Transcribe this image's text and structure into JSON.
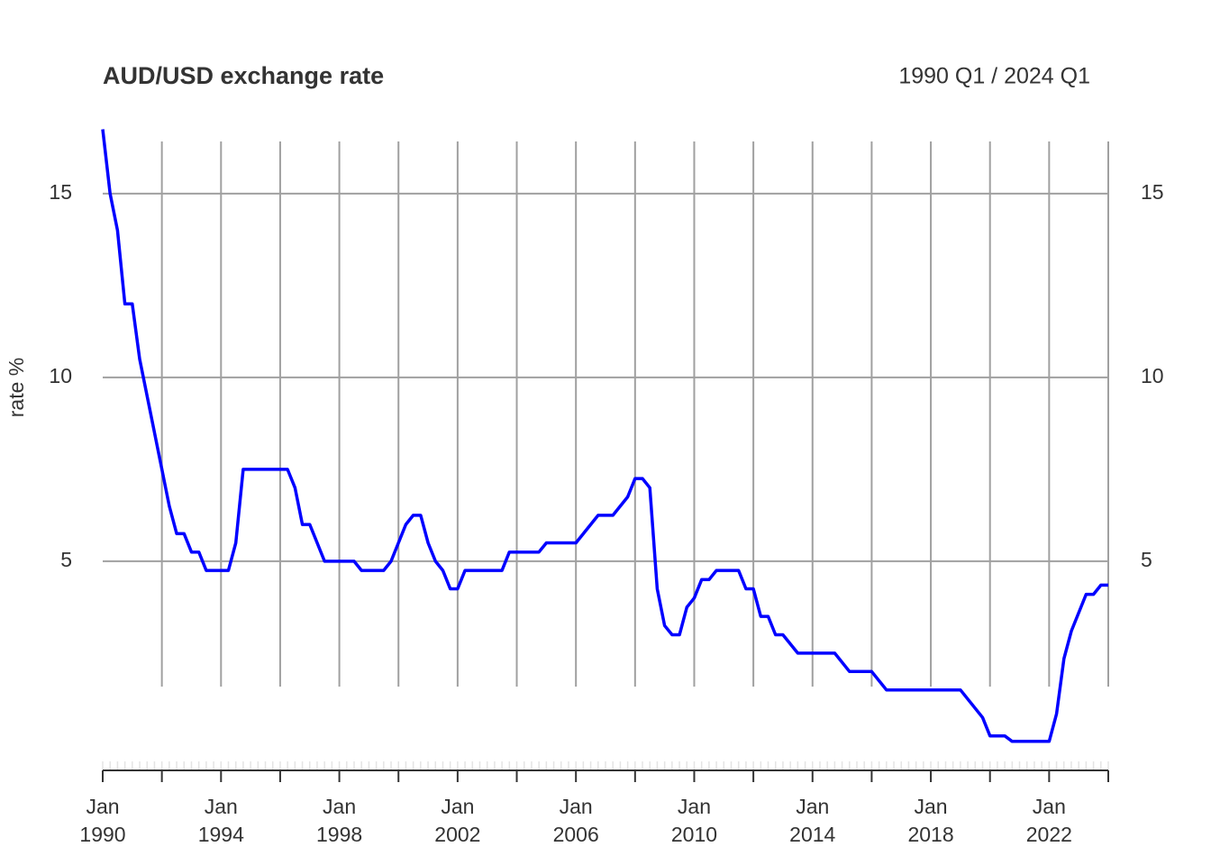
{
  "chart_data": {
    "type": "line",
    "title": "AUD/USD exchange rate",
    "subtitle": "1990 Q1 / 2024 Q1",
    "y_label": "rate %",
    "color": "#0000ff",
    "x": [
      "1990-01",
      "1990-04",
      "1990-07",
      "1990-10",
      "1991-01",
      "1991-04",
      "1992-04",
      "1992-07",
      "1992-10",
      "1993-01",
      "1993-04",
      "1993-07",
      "1994-04",
      "1994-07",
      "1994-10",
      "1996-04",
      "1996-07",
      "1996-10",
      "1997-01",
      "1997-07",
      "1998-07",
      "1998-10",
      "1999-07",
      "1999-10",
      "2000-04",
      "2000-07",
      "2000-10",
      "2001-01",
      "2001-04",
      "2001-07",
      "2001-10",
      "2002-01",
      "2002-04",
      "2003-07",
      "2003-10",
      "2004-10",
      "2005-01",
      "2006-01",
      "2006-10",
      "2007-04",
      "2007-10",
      "2008-01",
      "2008-04",
      "2008-07",
      "2008-10",
      "2009-01",
      "2009-04",
      "2009-07",
      "2009-10",
      "2010-01",
      "2010-04",
      "2010-07",
      "2010-10",
      "2011-07",
      "2011-10",
      "2012-01",
      "2012-04",
      "2012-07",
      "2012-10",
      "2013-01",
      "2013-07",
      "2014-10",
      "2015-04",
      "2016-01",
      "2016-07",
      "2019-01",
      "2019-10",
      "2020-01",
      "2020-07",
      "2020-10",
      "2022-01",
      "2022-04",
      "2022-07",
      "2022-10",
      "2023-01",
      "2023-04",
      "2023-07",
      "2023-10",
      "2024-01"
    ],
    "values": [
      16.75,
      15,
      14,
      12,
      12,
      10.5,
      6.5,
      5.75,
      5.75,
      5.25,
      5.25,
      4.75,
      4.75,
      5.5,
      7.5,
      7.5,
      7,
      6,
      6,
      5,
      5,
      4.75,
      4.75,
      5,
      6,
      6.25,
      6.25,
      5.5,
      5,
      4.75,
      4.25,
      4.25,
      4.75,
      4.75,
      5.25,
      5.25,
      5.5,
      5.5,
      6.25,
      6.25,
      6.75,
      7.25,
      7.25,
      7,
      4.25,
      3.25,
      3,
      3,
      3.75,
      4,
      4.5,
      4.5,
      4.75,
      4.75,
      4.25,
      4.25,
      3.5,
      3.5,
      3,
      3,
      2.5,
      2.5,
      2,
      2,
      1.5,
      1.5,
      0.75,
      0.25,
      0.25,
      0.1,
      0.1,
      0.85,
      2.35,
      3.1,
      3.6,
      4.1,
      4.1,
      4.35,
      4.35
    ],
    "xlim": [
      "1990-01",
      "2024-01"
    ],
    "xticks": [
      {
        "value": "1990-01",
        "month": "Jan",
        "year": "1990"
      },
      "1992-01",
      {
        "value": "1994-01",
        "month": "Jan",
        "year": "1994"
      },
      "1996-01",
      {
        "value": "1998-01",
        "month": "Jan",
        "year": "1998"
      },
      "2000-01",
      {
        "value": "2002-01",
        "month": "Jan",
        "year": "2002"
      },
      "2004-01",
      {
        "value": "2006-01",
        "month": "Jan",
        "year": "2006"
      },
      "2008-01",
      {
        "value": "2010-01",
        "month": "Jan",
        "year": "2010"
      },
      "2012-01",
      {
        "value": "2014-01",
        "month": "Jan",
        "year": "2014"
      },
      "2016-01",
      {
        "value": "2018-01",
        "month": "Jan",
        "year": "2018"
      },
      "2020-01",
      {
        "value": "2022-01",
        "month": "Jan",
        "year": "2022"
      },
      "2024-01"
    ],
    "ylim": [
      -0.6,
      17.4
    ],
    "yticks": [
      5,
      10,
      15
    ],
    "grid": true
  }
}
